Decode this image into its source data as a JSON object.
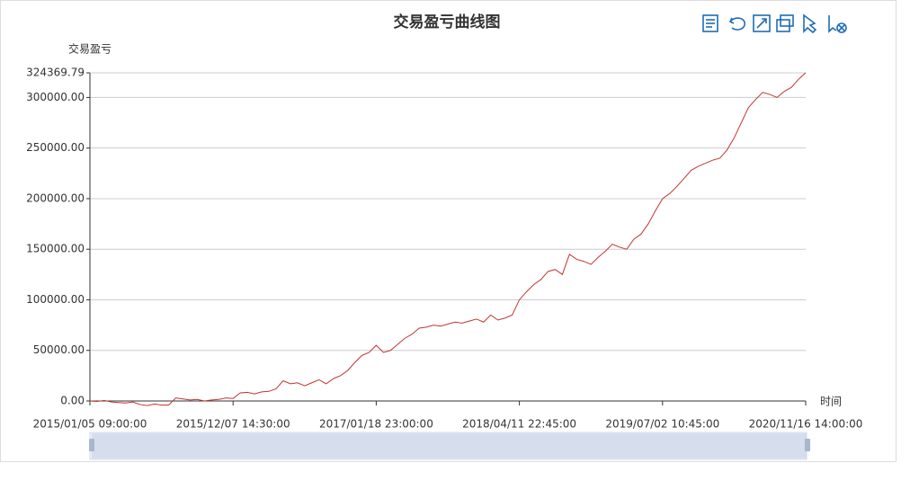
{
  "chart_data": {
    "type": "line",
    "title": "交易盈亏曲线图",
    "y_label": "交易盈亏",
    "x_label": "时间",
    "color": "#c23531",
    "grid": true,
    "ylim": [
      0,
      324369.79
    ],
    "yticks": [
      {
        "value": 0,
        "label": "0.00"
      },
      {
        "value": 50000,
        "label": "50000.00"
      },
      {
        "value": 100000,
        "label": "100000.00"
      },
      {
        "value": 150000,
        "label": "150000.00"
      },
      {
        "value": 200000,
        "label": "200000.00"
      },
      {
        "value": 250000,
        "label": "250000.00"
      },
      {
        "value": 300000,
        "label": "300000.00"
      },
      324369.79
    ],
    "categories": [
      "2015/01/05 09:00:00",
      null,
      null,
      null,
      null,
      null,
      null,
      null,
      null,
      null,
      null,
      null,
      null,
      null,
      null,
      null,
      null,
      null,
      null,
      null,
      "2015/12/07 14:30:00",
      null,
      null,
      null,
      null,
      null,
      null,
      null,
      null,
      null,
      null,
      null,
      null,
      null,
      null,
      null,
      null,
      null,
      null,
      null,
      "2017/01/18 23:00:00",
      null,
      null,
      null,
      null,
      null,
      null,
      null,
      null,
      null,
      null,
      null,
      null,
      null,
      null,
      null,
      null,
      null,
      null,
      null,
      "2018/04/11 22:45:00",
      null,
      null,
      null,
      null,
      null,
      null,
      null,
      null,
      null,
      null,
      null,
      null,
      null,
      null,
      null,
      null,
      null,
      null,
      null,
      "2019/07/02 10:45:00",
      null,
      null,
      null,
      null,
      null,
      null,
      null,
      null,
      null,
      null,
      null,
      null,
      null,
      null,
      null,
      null,
      null,
      null,
      null,
      "2020/11/16 14:00:00"
    ],
    "values": [
      0,
      -500,
      500,
      -1000,
      -1500,
      -2000,
      -1000,
      -3500,
      -4500,
      -3000,
      -4000,
      -4000,
      3000,
      2000,
      1000,
      1500,
      0,
      1000,
      1500,
      3000,
      2500,
      8000,
      8500,
      7000,
      9000,
      9500,
      12000,
      20000,
      17000,
      18000,
      15000,
      18000,
      21000,
      17000,
      22000,
      25000,
      30000,
      38000,
      45000,
      48000,
      55000,
      48000,
      50000,
      56000,
      62000,
      66000,
      72000,
      73000,
      75000,
      74000,
      76000,
      78000,
      77000,
      79000,
      81000,
      78000,
      85000,
      80000,
      82000,
      85000,
      100000,
      108000,
      115000,
      120000,
      128000,
      130000,
      125000,
      145000,
      140000,
      138000,
      135000,
      142000,
      148000,
      155000,
      152000,
      150000,
      160000,
      165000,
      175000,
      188000,
      200000,
      205000,
      212000,
      220000,
      228000,
      232000,
      235000,
      238000,
      240000,
      248000,
      260000,
      275000,
      290000,
      298000,
      305000,
      303000,
      300000,
      306000,
      310000,
      318000,
      324369.79
    ]
  }
}
